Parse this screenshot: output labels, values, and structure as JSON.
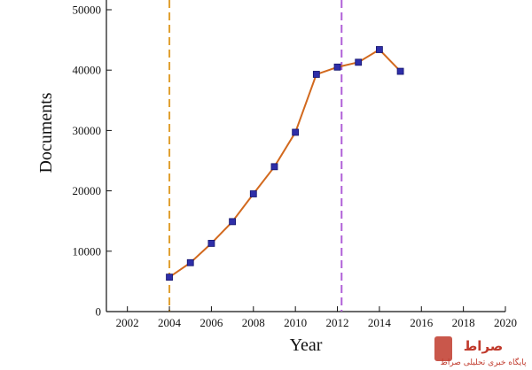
{
  "chart_data": {
    "type": "line",
    "xlabel": "Year",
    "ylabel": "Documents",
    "xlim": [
      2001,
      2020
    ],
    "ylim": [
      0,
      50000
    ],
    "xticks": [
      2002,
      2004,
      2006,
      2008,
      2010,
      2012,
      2014,
      2016,
      2018,
      2020
    ],
    "yticks": [
      0,
      10000,
      20000,
      30000,
      40000,
      50000
    ],
    "grid": false,
    "series": [
      {
        "x": [
          2004,
          2005,
          2006,
          2007,
          2008,
          2009,
          2010,
          2011,
          2012,
          2013,
          2014,
          2015
        ],
        "y": [
          5700,
          8100,
          11300,
          14900,
          19500,
          24000,
          29700,
          39300,
          40500,
          41300,
          43400,
          39800
        ],
        "line_color": "#d2691e",
        "marker_color": "#2e2ea8"
      }
    ],
    "vertical_lines": [
      {
        "x": 2004,
        "color": "#e0a030",
        "style": "dashed"
      },
      {
        "x": 2012.2,
        "color": "#b060d8",
        "style": "dashed"
      }
    ]
  },
  "watermark": {
    "logo_text": "صراط",
    "caption": "پایگاه خبری تحلیلی صراط",
    "color": "#c0392b"
  }
}
